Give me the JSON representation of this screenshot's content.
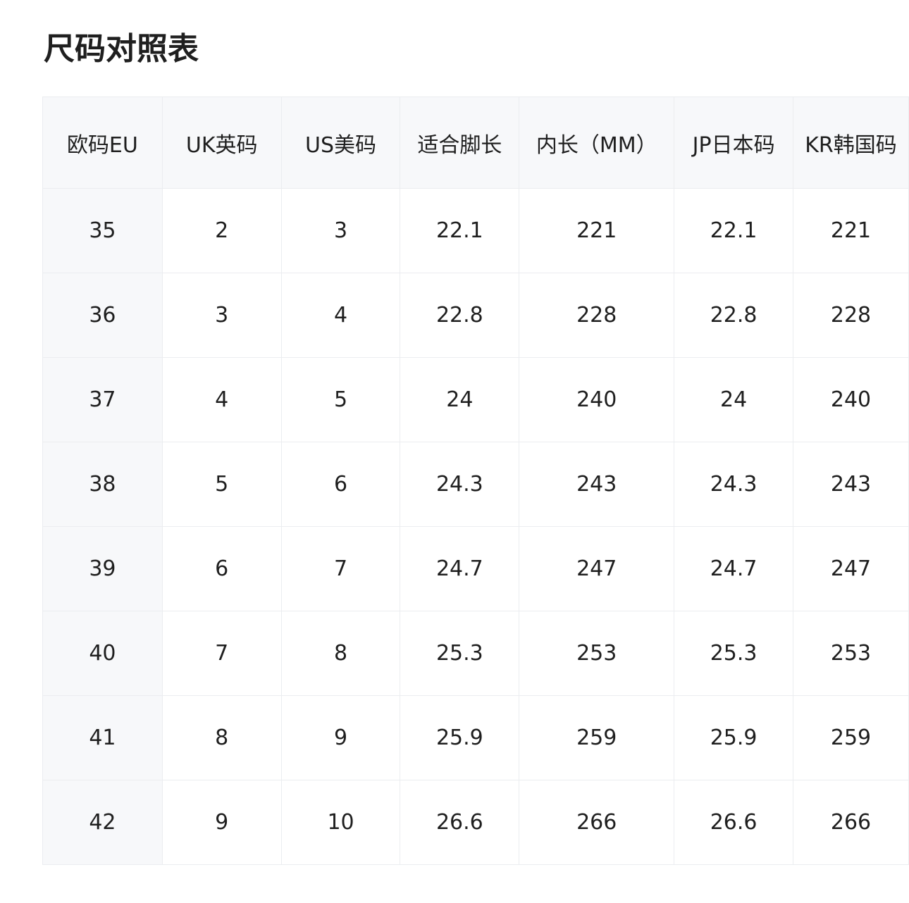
{
  "header": {
    "title": "尺码对照表"
  },
  "table": {
    "columns": [
      "欧码EU",
      "UK英码",
      "US美码",
      "适合脚长",
      "内长（MM）",
      "JP日本码",
      "KR韩国码"
    ],
    "rows": [
      [
        "35",
        "2",
        "3",
        "22.1",
        "221",
        "22.1",
        "221"
      ],
      [
        "36",
        "3",
        "4",
        "22.8",
        "228",
        "22.8",
        "228"
      ],
      [
        "37",
        "4",
        "5",
        "24",
        "240",
        "24",
        "240"
      ],
      [
        "38",
        "5",
        "6",
        "24.3",
        "243",
        "24.3",
        "243"
      ],
      [
        "39",
        "6",
        "7",
        "24.7",
        "247",
        "24.7",
        "247"
      ],
      [
        "40",
        "7",
        "8",
        "25.3",
        "253",
        "25.3",
        "253"
      ],
      [
        "41",
        "8",
        "9",
        "25.9",
        "259",
        "25.9",
        "259"
      ],
      [
        "42",
        "9",
        "10",
        "26.6",
        "266",
        "26.6",
        "266"
      ]
    ]
  }
}
